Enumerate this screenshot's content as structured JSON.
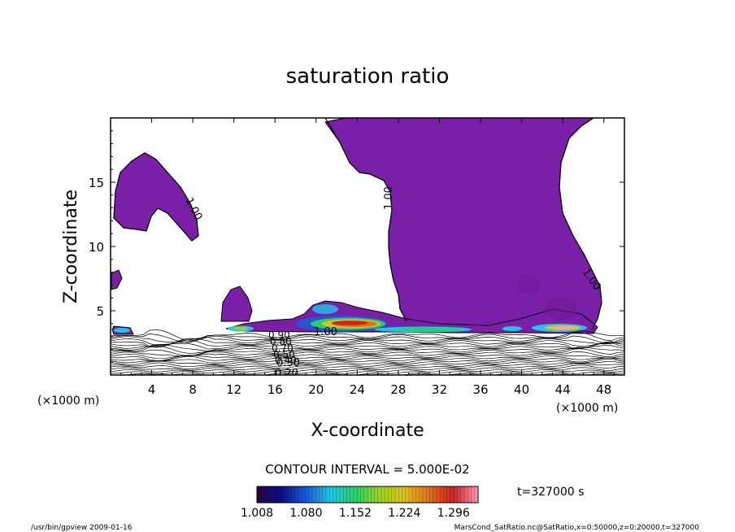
{
  "chart_data": {
    "type": "contour",
    "title": "saturation ratio",
    "xlabel": "X-coordinate",
    "ylabel": "Z-coordinate",
    "x_unit": "(×1000 m)",
    "xlim": [
      0,
      50
    ],
    "ylim": [
      0,
      20
    ],
    "x_ticks": [
      4,
      8,
      12,
      16,
      20,
      24,
      28,
      32,
      36,
      40,
      44,
      48
    ],
    "y_ticks": [
      5,
      10,
      15
    ],
    "contour_interval_text": "CONTOUR INTERVAL = 5.000E-02",
    "contour_labels": [
      "1.00",
      "1.00",
      "1.00",
      "1.00",
      "0.90",
      "0.80",
      "0.70",
      "0.50",
      "0.40",
      "0.30",
      "0.20"
    ],
    "fill_threshold": 1.0,
    "fill_color": "#7a1fa8",
    "colorbar": {
      "tick_labels": [
        "1.008",
        "1.080",
        "1.152",
        "1.224",
        "1.296"
      ],
      "range": [
        1.008,
        1.332
      ],
      "colors": [
        "#2a0040",
        "#0b0f8a",
        "#1a5bd8",
        "#1fc8e8",
        "#26d06a",
        "#9ad61c",
        "#e0c21a",
        "#e56e18",
        "#cc2424",
        "#ff9cb8"
      ]
    },
    "regions": [
      {
        "name": "upper-right supersaturated plume",
        "x": [
          26.5,
          48.5
        ],
        "z": [
          3.5,
          20
        ]
      },
      {
        "name": "upper-left supersaturated patch",
        "x": [
          0.5,
          8.5
        ],
        "z": [
          10,
          17.5
        ]
      },
      {
        "name": "low-level cloud layer",
        "x": [
          11,
          47
        ],
        "z": [
          3,
          5
        ]
      },
      {
        "name": "high saturation core",
        "x": [
          18,
          27
        ],
        "z": [
          3.5,
          4.5
        ]
      }
    ]
  },
  "time_label": "t=327000 s",
  "footer": {
    "left": "/usr/bin/gpview  2009-01-16",
    "right": "MarsCond_SatRatio.nc@SatRatio,x=0:50000,z=0:20000,t=327000"
  }
}
